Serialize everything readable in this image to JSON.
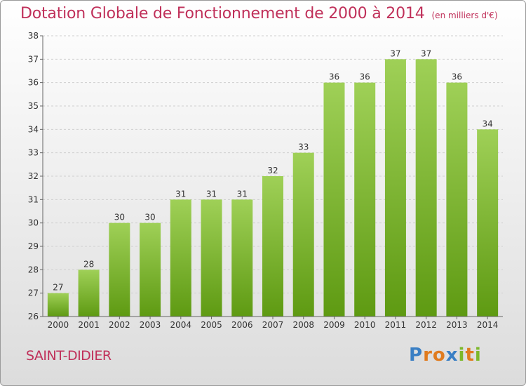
{
  "header": {
    "title": "Dotation Globale de Fonctionnement de 2000 à 2014",
    "subtitle": "(en milliers d'€)"
  },
  "footer": {
    "commune": "SAINT-DIDIER",
    "logo_text": "Proxiti",
    "logo_colors": [
      "#3a7fc4",
      "#e07b1e",
      "#e07b1e",
      "#3a7fc4",
      "#7cb82a",
      "#e07b1e",
      "#7cb82a"
    ]
  },
  "colors": {
    "bar_light": "#9fd057",
    "bar_dark": "#5e9a12",
    "grid": "#cfcfcf",
    "axis_text": "#333333"
  },
  "chart_data": {
    "type": "bar",
    "title": "Dotation Globale de Fonctionnement de 2000 à 2014",
    "subtitle": "(en milliers d'€)",
    "categories": [
      "2000",
      "2001",
      "2002",
      "2003",
      "2004",
      "2005",
      "2006",
      "2007",
      "2008",
      "2009",
      "2010",
      "2011",
      "2012",
      "2013",
      "2014"
    ],
    "values": [
      27,
      28,
      30,
      30,
      31,
      31,
      31,
      32,
      33,
      36,
      36,
      37,
      37,
      36,
      34
    ],
    "ylim": [
      26,
      38
    ],
    "yticks": [
      26,
      27,
      28,
      29,
      30,
      31,
      32,
      33,
      34,
      35,
      36,
      37,
      38
    ],
    "grid": "horizontal-dashed"
  }
}
